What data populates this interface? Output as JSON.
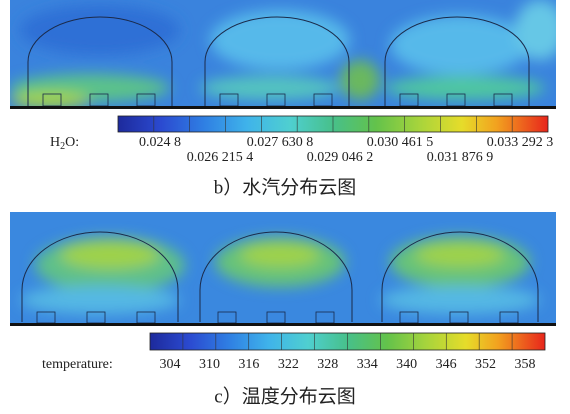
{
  "panels": [
    {
      "legend_label": {
        "main": "H",
        "sub": "2",
        "rest": "O:"
      },
      "ticks": [
        "0.024 8",
        "0.026 215 4",
        "0.027 630 8",
        "0.029 046 2",
        "0.030 461 5",
        "0.031 876 9",
        "0.033 292 3"
      ],
      "caption": "b）水汽分布云图"
    },
    {
      "legend_label": {
        "main": "temperature:"
      },
      "ticks": [
        "304",
        "310",
        "316",
        "322",
        "328",
        "334",
        "340",
        "346",
        "352",
        "358"
      ],
      "caption": "c）温度分布云图"
    }
  ]
}
